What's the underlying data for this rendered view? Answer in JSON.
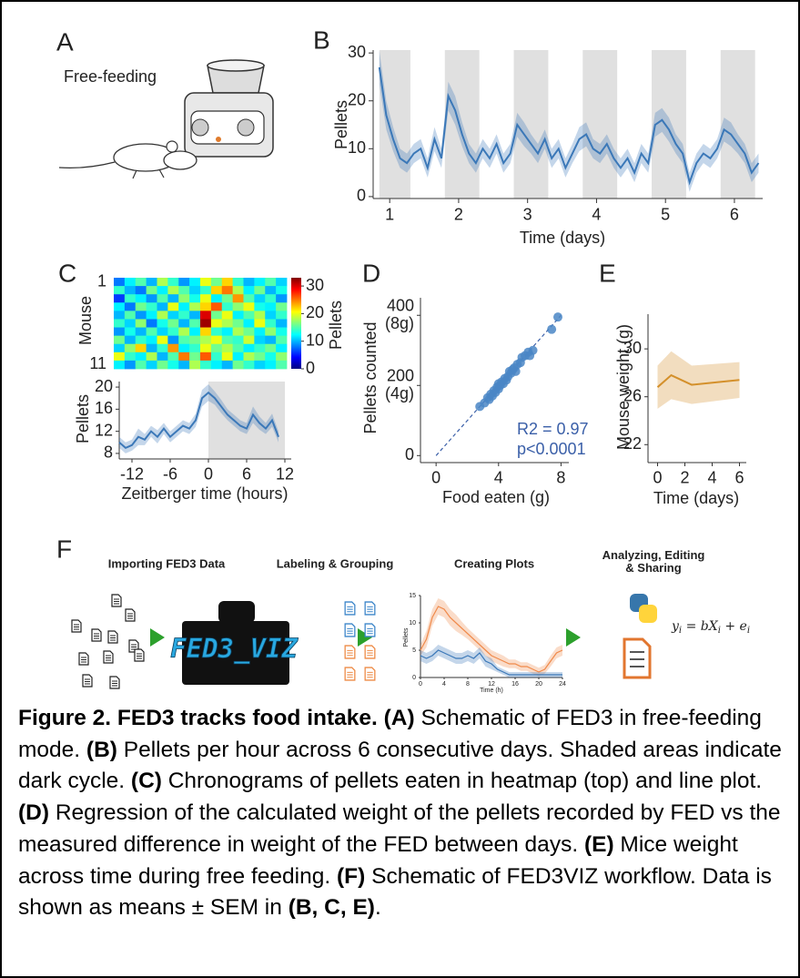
{
  "panels": [
    "A",
    "B",
    "C",
    "D",
    "E",
    "F"
  ],
  "panel_a": {
    "label": "Free-feeding"
  },
  "chart_data": [
    {
      "type": "line",
      "xlabel": "Time (days)",
      "ylabel": "Pellets",
      "xlim": [
        0.76,
        6.41
      ],
      "ylim": [
        -0.4,
        30.6
      ],
      "xticks": [
        1,
        2,
        3,
        4,
        5,
        6
      ],
      "yticks": [
        0,
        10,
        20,
        30
      ],
      "shaded": [
        [
          0.85,
          1.3
        ],
        [
          1.8,
          2.3
        ],
        [
          2.8,
          3.3
        ],
        [
          3.8,
          4.3
        ],
        [
          4.8,
          5.3
        ],
        [
          5.8,
          6.3
        ]
      ],
      "x": [
        0.85,
        0.95,
        1.05,
        1.15,
        1.25,
        1.35,
        1.45,
        1.55,
        1.65,
        1.75,
        1.85,
        1.95,
        2.05,
        2.15,
        2.25,
        2.35,
        2.45,
        2.55,
        2.65,
        2.75,
        2.85,
        2.95,
        3.05,
        3.15,
        3.25,
        3.35,
        3.45,
        3.55,
        3.65,
        3.75,
        3.85,
        3.95,
        4.05,
        4.15,
        4.25,
        4.35,
        4.45,
        4.55,
        4.65,
        4.75,
        4.85,
        4.95,
        5.05,
        5.15,
        5.25,
        5.35,
        5.45,
        5.55,
        5.65,
        5.75,
        5.85,
        5.95,
        6.05,
        6.15,
        6.25,
        6.35
      ],
      "series": [
        {
          "color": "#3b78b8",
          "values": [
            27,
            17,
            12,
            8,
            7,
            9,
            10,
            6,
            12,
            8,
            21,
            18,
            13,
            9,
            7,
            10,
            8,
            11,
            7,
            9,
            15,
            13,
            11,
            9,
            12,
            8,
            10,
            6,
            9,
            12,
            13,
            10,
            9,
            11,
            8,
            6,
            8,
            5,
            9,
            7,
            15,
            16,
            14,
            11,
            9,
            3,
            7,
            9,
            8,
            10,
            14,
            13,
            11,
            9,
            5,
            7
          ],
          "sem": [
            3.5,
            3,
            2.5,
            2,
            2,
            2,
            2,
            2,
            2.5,
            2,
            3,
            3,
            2.5,
            2,
            2,
            2,
            2,
            2,
            2,
            2,
            2.5,
            2.5,
            2,
            2,
            2,
            2,
            2,
            2,
            2,
            2.5,
            2.5,
            2,
            2,
            2,
            2,
            2,
            2,
            2,
            2,
            2,
            2.5,
            2.5,
            2.5,
            2,
            2,
            2,
            2,
            2,
            2,
            2,
            2.5,
            2.5,
            2,
            2,
            2,
            2
          ]
        }
      ]
    },
    {
      "type": "heatmap",
      "ylabel": "Mouse",
      "ylim": [
        0.5,
        11.5
      ],
      "yticks": [
        1,
        11
      ],
      "clabel": "Pellets",
      "clim": [
        0,
        33
      ],
      "cticks": [
        0,
        10,
        20,
        30
      ],
      "values": [
        [
          8,
          12,
          15,
          10,
          18,
          14,
          9,
          12,
          20,
          16,
          22,
          14,
          10,
          12,
          15,
          11
        ],
        [
          14,
          10,
          8,
          16,
          12,
          18,
          15,
          11,
          14,
          22,
          25,
          18,
          12,
          16,
          10,
          13
        ],
        [
          6,
          14,
          12,
          9,
          15,
          10,
          17,
          13,
          20,
          12,
          16,
          24,
          15,
          11,
          14,
          9
        ],
        [
          12,
          8,
          16,
          14,
          10,
          20,
          12,
          18,
          22,
          26,
          14,
          17,
          20,
          13,
          12,
          16
        ],
        [
          10,
          15,
          9,
          12,
          18,
          11,
          14,
          10,
          30,
          16,
          20,
          12,
          15,
          18,
          11,
          14
        ],
        [
          14,
          11,
          17,
          8,
          13,
          16,
          10,
          15,
          32,
          20,
          18,
          16,
          12,
          20,
          14,
          10
        ],
        [
          9,
          13,
          10,
          15,
          11,
          14,
          18,
          12,
          22,
          14,
          12,
          18,
          16,
          12,
          17,
          13
        ],
        [
          16,
          10,
          14,
          12,
          20,
          9,
          15,
          16,
          18,
          20,
          15,
          14,
          19,
          11,
          10,
          15
        ],
        [
          11,
          17,
          22,
          10,
          14,
          24,
          12,
          14,
          20,
          16,
          18,
          15,
          12,
          14,
          16,
          12
        ],
        [
          20,
          14,
          12,
          18,
          10,
          15,
          25,
          16,
          26,
          14,
          20,
          12,
          18,
          16,
          13,
          17
        ],
        [
          12,
          9,
          15,
          11,
          16,
          13,
          10,
          18,
          14,
          12,
          10,
          16,
          14,
          11,
          12,
          15
        ]
      ]
    },
    {
      "type": "line",
      "xlabel": "Zeitberger time (hours)",
      "ylabel": "Pellets",
      "xlim": [
        -14,
        13
      ],
      "ylim": [
        7,
        21
      ],
      "xticks": [
        -12,
        -6,
        0,
        6,
        12
      ],
      "yticks": [
        8,
        12,
        16,
        20
      ],
      "shaded": [
        [
          0,
          12
        ]
      ],
      "x": [
        -14,
        -13,
        -12,
        -11,
        -10,
        -9,
        -8,
        -7,
        -6,
        -5,
        -4,
        -3,
        -2,
        -1,
        0,
        1,
        2,
        3,
        4,
        5,
        6,
        7,
        8,
        9,
        10,
        11
      ],
      "series": [
        {
          "color": "#3b78b8",
          "values": [
            10,
            9,
            9.5,
            11,
            10.5,
            12,
            11,
            12.5,
            11,
            12,
            13,
            12.5,
            14,
            18,
            19,
            18,
            16.5,
            15,
            14,
            13,
            12.5,
            15,
            13.5,
            12.5,
            14,
            11
          ],
          "sem": [
            1,
            1,
            1,
            1.5,
            1,
            1,
            1.2,
            1,
            1,
            1,
            1,
            1,
            1.2,
            1.5,
            1.5,
            1.2,
            1.2,
            1,
            1,
            1,
            1,
            1.5,
            1.2,
            1,
            1.2,
            1
          ]
        }
      ]
    },
    {
      "type": "scatter",
      "xlabel": "Food eaten (g)",
      "ylabel": "Pellets counted",
      "xlim": [
        -1,
        8.5
      ],
      "ylim": [
        -20,
        450
      ],
      "xticks": [
        0,
        4,
        8
      ],
      "yticks": [
        0,
        {
          "value": 200,
          "label": "200\n(4g)"
        },
        {
          "value": 400,
          "label": "400\n(8g)"
        }
      ],
      "color": "#4a86c5",
      "x": [
        2.8,
        3.1,
        3.3,
        3.4,
        3.5,
        3.6,
        3.7,
        3.8,
        3.9,
        4.0,
        4.0,
        4.1,
        4.2,
        4.3,
        4.4,
        4.5,
        4.6,
        4.7,
        4.8,
        4.9,
        5.0,
        5.1,
        5.2,
        5.4,
        5.5,
        5.7,
        5.9,
        6.0,
        6.2,
        7.4,
        7.8
      ],
      "values": [
        140,
        150,
        165,
        160,
        175,
        170,
        185,
        180,
        195,
        190,
        205,
        200,
        210,
        205,
        220,
        215,
        225,
        240,
        235,
        245,
        250,
        240,
        260,
        265,
        280,
        285,
        295,
        285,
        300,
        360,
        395
      ],
      "fit": {
        "x": [
          0,
          8
        ],
        "y": [
          0,
          400
        ]
      },
      "annotation_color": "#3a5fa8",
      "annotations": [
        "R2 = 0.97",
        "p<0.0001"
      ]
    },
    {
      "type": "line",
      "xlabel": "Time (days)",
      "ylabel": "Mouse weight (g)",
      "xlim": [
        -0.7,
        6.5
      ],
      "ylim": [
        20.5,
        32.9
      ],
      "xticks": [
        0,
        2,
        4,
        6
      ],
      "yticks": [
        22,
        26,
        30
      ],
      "x": [
        0,
        1,
        2.5,
        6
      ],
      "series": [
        {
          "color": "#d4902b",
          "values": [
            26.8,
            27.8,
            27.0,
            27.4
          ],
          "sem": [
            1.8,
            2.0,
            1.6,
            1.5
          ]
        }
      ]
    },
    {
      "type": "line",
      "xlabel": "Time (h)",
      "ylabel": "Pellets",
      "xlim": [
        0,
        24
      ],
      "ylim": [
        0,
        15
      ],
      "xticks": [
        0,
        4,
        8,
        12,
        16,
        20,
        24
      ],
      "yticks": [
        0,
        5,
        10,
        15
      ],
      "x": [
        0,
        1,
        2,
        3,
        4,
        5,
        6,
        7,
        8,
        9,
        10,
        11,
        12,
        13,
        14,
        15,
        16,
        17,
        18,
        19,
        20,
        21,
        22,
        23,
        24
      ],
      "series": [
        {
          "color": "#f08a4b",
          "values": [
            5,
            7,
            11,
            13,
            12.5,
            11,
            10,
            9,
            8,
            7,
            6,
            5,
            4,
            3.5,
            3,
            2.5,
            2.5,
            2,
            2,
            1.5,
            1,
            1.5,
            3,
            4.5,
            5
          ],
          "sem": [
            1,
            1.5,
            1.5,
            1.5,
            1.5,
            1.5,
            1.5,
            1.2,
            1,
            1,
            1,
            1,
            1,
            1,
            1,
            0.8,
            0.8,
            0.8,
            0.8,
            0.8,
            0.8,
            0.8,
            1,
            1,
            1
          ]
        },
        {
          "color": "#3b78b8",
          "values": [
            4,
            3.5,
            4,
            5,
            4.5,
            4,
            3.5,
            3.5,
            4,
            3.5,
            4.5,
            3,
            2.5,
            1.5,
            1,
            0.5,
            0.5,
            0.5,
            0.5,
            0.5,
            0.5,
            0.5,
            0.5,
            0.5,
            0.5
          ],
          "sem": [
            1,
            1,
            1,
            1,
            1,
            1,
            1,
            1,
            1,
            1,
            1,
            1,
            1,
            0.5,
            0.5,
            0.5,
            0.5,
            0.5,
            0.5,
            0.5,
            0.5,
            0.5,
            0.5,
            0.5,
            0.5
          ]
        }
      ]
    }
  ],
  "workflow": {
    "steps": [
      "Importing FED3 Data",
      "Labeling & Grouping",
      "Creating Plots",
      "Analyzing, Editing\n& Sharing"
    ],
    "logo": "FED3_VIZ",
    "equation": "y_i = bX_i + e_i"
  },
  "caption": {
    "runs": [
      {
        "bold": true,
        "text": "Figure 2. FED3 tracks food intake. (A)"
      },
      {
        "bold": false,
        "text": " Schematic of FED3 in free-feeding mode. "
      },
      {
        "bold": true,
        "text": "(B)"
      },
      {
        "bold": false,
        "text": " Pellets per hour across 6 consecutive days. Shaded areas indicate dark cycle. "
      },
      {
        "bold": true,
        "text": "(C)"
      },
      {
        "bold": false,
        "text": " Chronograms of pellets eaten in heatmap (top) and line plot. "
      },
      {
        "bold": true,
        "text": "(D)"
      },
      {
        "bold": false,
        "text": " Regression of the calculated weight of the pellets recorded by FED vs the measured difference in weight of the FED between days. "
      },
      {
        "bold": true,
        "text": "(E)"
      },
      {
        "bold": false,
        "text": " Mice weight across time during free feeding. "
      },
      {
        "bold": true,
        "text": "(F)"
      },
      {
        "bold": false,
        "text": " Schematic of FED3VIZ workflow. Data is shown as means ± SEM in "
      },
      {
        "bold": true,
        "text": "(B, C, E)"
      },
      {
        "bold": false,
        "text": "."
      }
    ]
  }
}
